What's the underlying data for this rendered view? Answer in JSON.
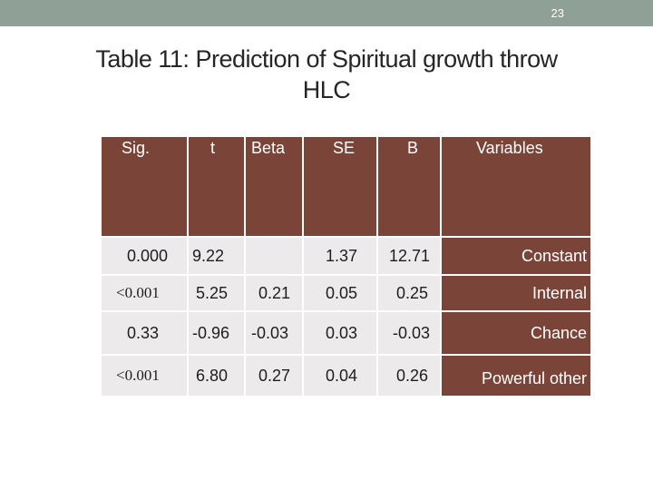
{
  "slide": {
    "page_number": "23"
  },
  "title": {
    "line1": "Table 11: Prediction of Spiritual growth throw",
    "line2": "HLC"
  },
  "table": {
    "headers": [
      "Sig.",
      "t",
      "Beta",
      "SE",
      "B",
      "Variables"
    ],
    "rows": [
      [
        "0.000",
        "9.22",
        "",
        "1.37",
        "12.71",
        "Constant"
      ],
      [
        "<0.001",
        "5.25",
        "0.21",
        "0.05",
        "0.25",
        "Internal"
      ],
      [
        "0.33",
        "-0.96",
        "-0.03",
        "0.03",
        "-0.03",
        "Chance"
      ],
      [
        "<0.001",
        "6.80",
        "0.27",
        "0.04",
        "0.26",
        "Powerful other"
      ]
    ]
  },
  "colors": {
    "header_bg": "#7a4538",
    "cell_bg": "#eceaea",
    "topbar": "#8fa197"
  }
}
